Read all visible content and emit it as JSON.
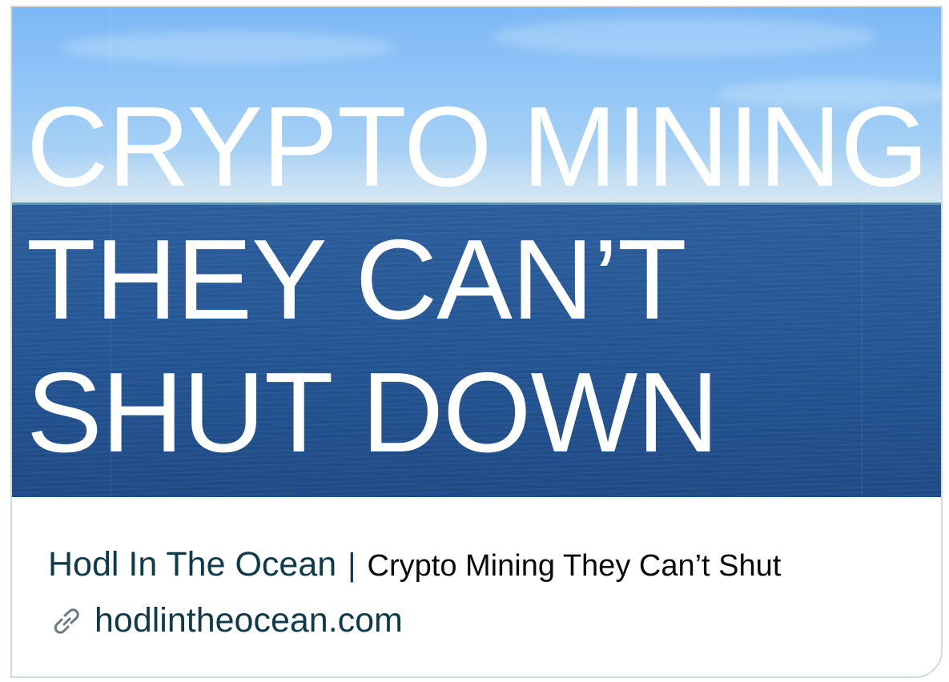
{
  "hero": {
    "headline_lines": [
      "CRYPTO MINING",
      "THEY CAN’T",
      "SHUT DOWN"
    ]
  },
  "card": {
    "site_name": "Hodl In The Ocean",
    "separator": "|",
    "page_title": "Crypto Mining They Can’t Shut",
    "domain": "hodlintheocean.com",
    "link_icon": "link-icon"
  },
  "colors": {
    "headline": "#ffffff",
    "site_text": "#0f3a4a",
    "title_text": "#0a0a0a",
    "border": "#cfd9de"
  }
}
